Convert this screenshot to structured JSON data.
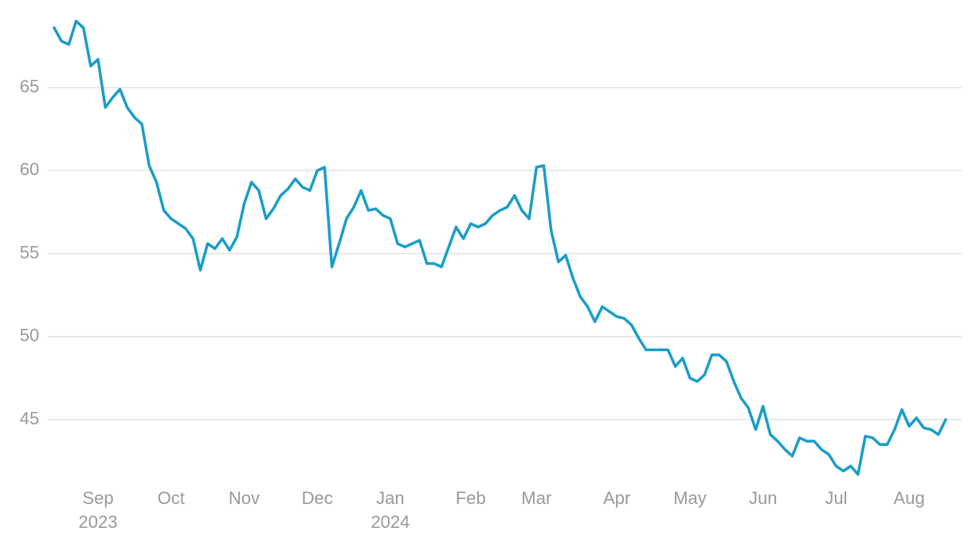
{
  "chart_data": {
    "type": "line",
    "categories": [
      null,
      null,
      null,
      null,
      null,
      null,
      "Sep 2023",
      null,
      null,
      null,
      null,
      null,
      null,
      null,
      null,
      null,
      "Oct",
      null,
      null,
      null,
      null,
      null,
      null,
      null,
      null,
      null,
      "Nov",
      null,
      null,
      null,
      null,
      null,
      null,
      null,
      null,
      null,
      "Dec",
      null,
      null,
      null,
      null,
      null,
      null,
      null,
      null,
      null,
      "Jan 2024",
      null,
      null,
      null,
      null,
      null,
      null,
      null,
      null,
      null,
      null,
      "Feb",
      null,
      null,
      null,
      null,
      null,
      null,
      null,
      null,
      "Mar",
      null,
      null,
      null,
      null,
      null,
      null,
      null,
      null,
      null,
      null,
      "Apr",
      null,
      null,
      null,
      null,
      null,
      null,
      null,
      null,
      null,
      "May",
      null,
      null,
      null,
      null,
      null,
      null,
      null,
      null,
      null,
      "Jun",
      null,
      null,
      null,
      null,
      null,
      null,
      null,
      null,
      null,
      "Jul",
      null,
      null,
      null,
      null,
      null,
      null,
      null,
      null,
      null,
      "Aug",
      null,
      null,
      null,
      null,
      null
    ],
    "series": [
      {
        "color": "#1a9dc9",
        "values": [
          68.6,
          67.8,
          67.6,
          69.0,
          68.6,
          66.3,
          66.7,
          63.8,
          64.4,
          64.9,
          63.8,
          63.2,
          62.8,
          60.3,
          59.3,
          57.6,
          57.1,
          56.8,
          56.5,
          55.9,
          54.0,
          55.6,
          55.3,
          55.9,
          55.2,
          56.0,
          58.0,
          59.3,
          58.8,
          57.1,
          57.7,
          58.5,
          58.9,
          59.5,
          59.0,
          58.8,
          60.0,
          60.2,
          54.2,
          55.6,
          57.1,
          57.8,
          58.8,
          57.6,
          57.7,
          57.3,
          57.1,
          55.6,
          55.4,
          55.6,
          55.8,
          54.4,
          54.4,
          54.2,
          55.4,
          56.6,
          55.9,
          56.8,
          56.6,
          56.8,
          57.3,
          57.6,
          57.8,
          58.5,
          57.6,
          57.1,
          60.2,
          60.3,
          56.4,
          54.5,
          54.9,
          53.5,
          52.4,
          51.8,
          50.9,
          51.8,
          51.5,
          51.2,
          51.1,
          50.7,
          49.9,
          49.2,
          49.2,
          49.2,
          49.2,
          48.2,
          48.7,
          47.5,
          47.3,
          47.7,
          48.9,
          48.9,
          48.5,
          47.3,
          46.3,
          45.7,
          44.4,
          45.8,
          44.1,
          43.7,
          43.2,
          42.8,
          43.9,
          43.7,
          43.7,
          43.2,
          42.9,
          42.2,
          41.9,
          42.2,
          41.7,
          44.0,
          43.9,
          43.5,
          43.5,
          44.4,
          45.6,
          44.6,
          45.1,
          44.5,
          44.4,
          44.1,
          45.0
        ]
      }
    ],
    "ylim": [
      41,
      70
    ],
    "yticks": [
      45,
      50,
      55,
      60,
      65
    ],
    "grid": true
  }
}
